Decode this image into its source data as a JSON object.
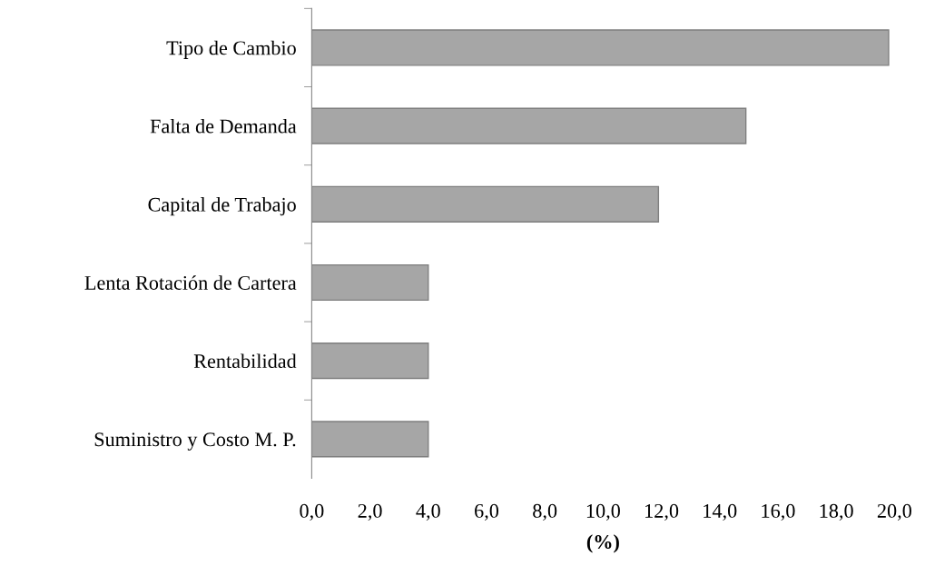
{
  "chart_data": {
    "type": "bar",
    "orientation": "horizontal",
    "xlabel": "(%)",
    "categories": [
      "Tipo de Cambio",
      "Falta de Demanda",
      "Capital de Trabajo",
      "Lenta Rotación de Cartera",
      "Rentabilidad",
      "Suministro y Costo M. P."
    ],
    "values": [
      19.8,
      14.9,
      11.9,
      4.0,
      4.0,
      4.0
    ],
    "color": "#a6a6a6",
    "xlim": [
      0,
      20
    ],
    "xticks": [
      {
        "value": 0,
        "label": "0,0"
      },
      {
        "value": 2,
        "label": "2,0"
      },
      {
        "value": 4,
        "label": "4,0"
      },
      {
        "value": 6,
        "label": "6,0"
      },
      {
        "value": 8,
        "label": "8,0"
      },
      {
        "value": 10,
        "label": "10,0"
      },
      {
        "value": 12,
        "label": "12,0"
      },
      {
        "value": 14,
        "label": "14,0"
      },
      {
        "value": 16,
        "label": "16,0"
      },
      {
        "value": 18,
        "label": "18,0"
      },
      {
        "value": 20,
        "label": "20,0"
      }
    ],
    "grid": false,
    "legend": false
  }
}
